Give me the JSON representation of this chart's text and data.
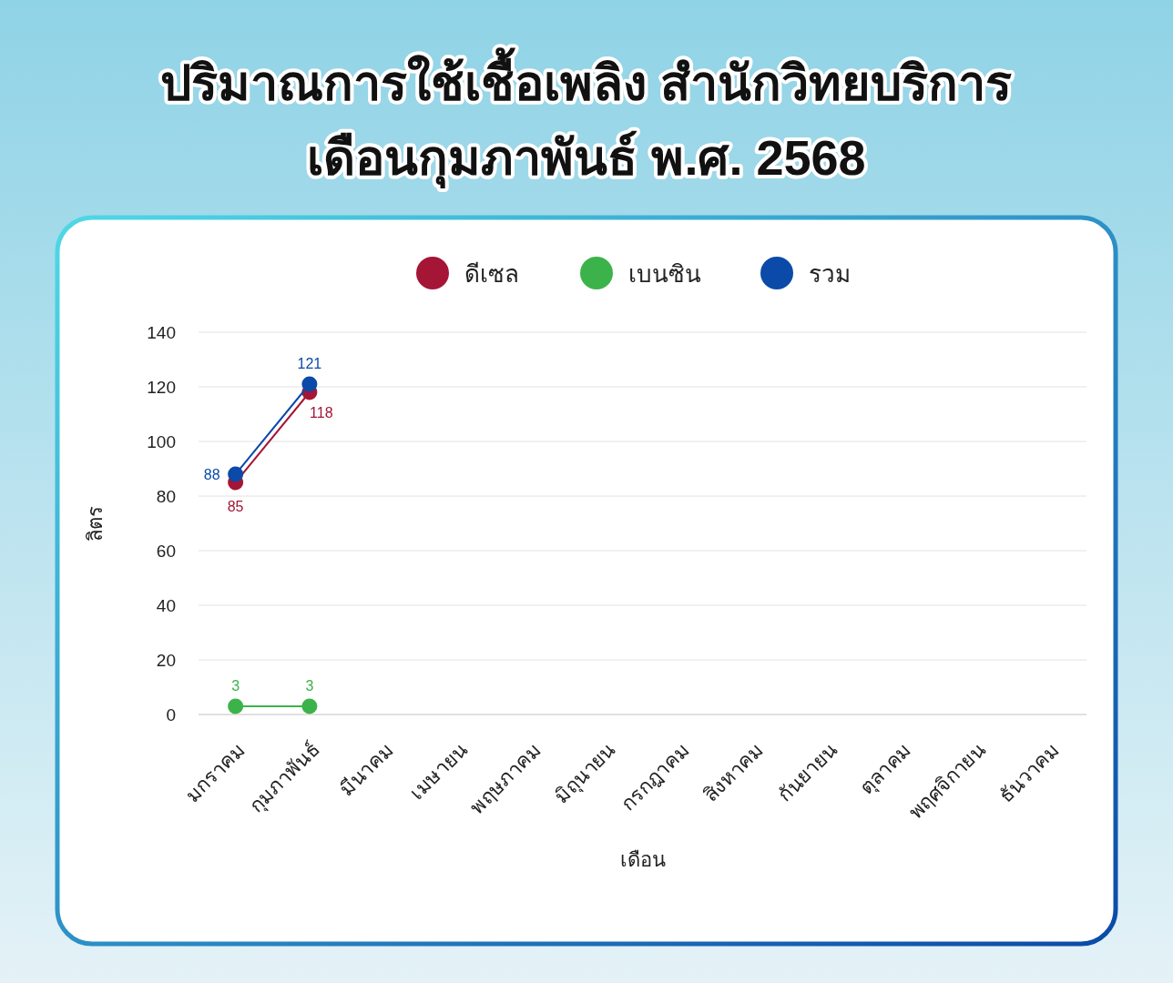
{
  "chart_data": {
    "type": "line",
    "title": "ปริมาณการใช้เชื้อเพลิง สำนักวิทยบริการ\nเดือนกุมภาพันธ์ พ.ศ. 2568",
    "xlabel": "เดือน",
    "ylabel": "ลิตร",
    "categories": [
      "มกราคม",
      "กุมภาพันธ์",
      "มีนาคม",
      "เมษายน",
      "พฤษภาคม",
      "มิถุนายน",
      "กรกฎาคม",
      "สิงหาคม",
      "กันยายน",
      "ตุลาคม",
      "พฤศจิกายน",
      "ธันวาคม"
    ],
    "series": [
      {
        "name": "ดีเซล",
        "color": "#a51535",
        "values": [
          85,
          118,
          null,
          null,
          null,
          null,
          null,
          null,
          null,
          null,
          null,
          null
        ]
      },
      {
        "name": "เบนซิน",
        "color": "#3cb34a",
        "values": [
          3,
          3,
          null,
          null,
          null,
          null,
          null,
          null,
          null,
          null,
          null,
          null
        ]
      },
      {
        "name": "รวม",
        "color": "#0b4aa8",
        "values": [
          88,
          121,
          null,
          null,
          null,
          null,
          null,
          null,
          null,
          null,
          null,
          null
        ]
      }
    ],
    "ylim": [
      0,
      140
    ],
    "yticks": [
      0,
      20,
      40,
      60,
      80,
      100,
      120,
      140
    ],
    "grid": "y",
    "legend": "top",
    "marker": "circle",
    "line_style": "solid",
    "data_labels": true
  }
}
